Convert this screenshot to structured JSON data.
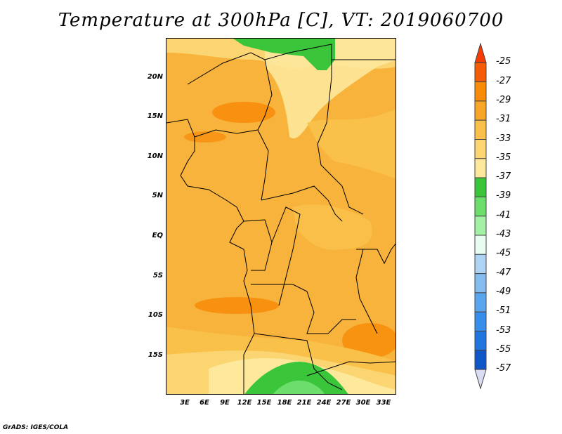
{
  "title": "Temperature at 300hPa [C], VT: 2019060700",
  "credit": "GrADS: IGES/COLA",
  "lat_labels": [
    "20N",
    "15N",
    "10N",
    "5N",
    "EQ",
    "5S",
    "10S",
    "15S"
  ],
  "lon_labels": [
    "3E",
    "6E",
    "9E",
    "12E",
    "15E",
    "18E",
    "21E",
    "24E",
    "27E",
    "30E",
    "33E"
  ],
  "colorbar": {
    "levels": [
      "-25",
      "-27",
      "-29",
      "-31",
      "-33",
      "-35",
      "-37",
      "-39",
      "-41",
      "-43",
      "-45",
      "-47",
      "-49",
      "-51",
      "-53",
      "-55",
      "-57"
    ],
    "colors": [
      "#f55b05",
      "#f88b08",
      "#f7a627",
      "#f9c04a",
      "#fbd572",
      "#fde89b",
      "#3bc53b",
      "#6cde6c",
      "#a4f0a4",
      "#e8fcf2",
      "#aed3f3",
      "#85bcf0",
      "#5aa6ee",
      "#378eea",
      "#2175e0",
      "#0f56c8",
      "#08207a"
    ],
    "top_color": "#f53c05",
    "bottom_color": "#d9dcf5"
  }
}
